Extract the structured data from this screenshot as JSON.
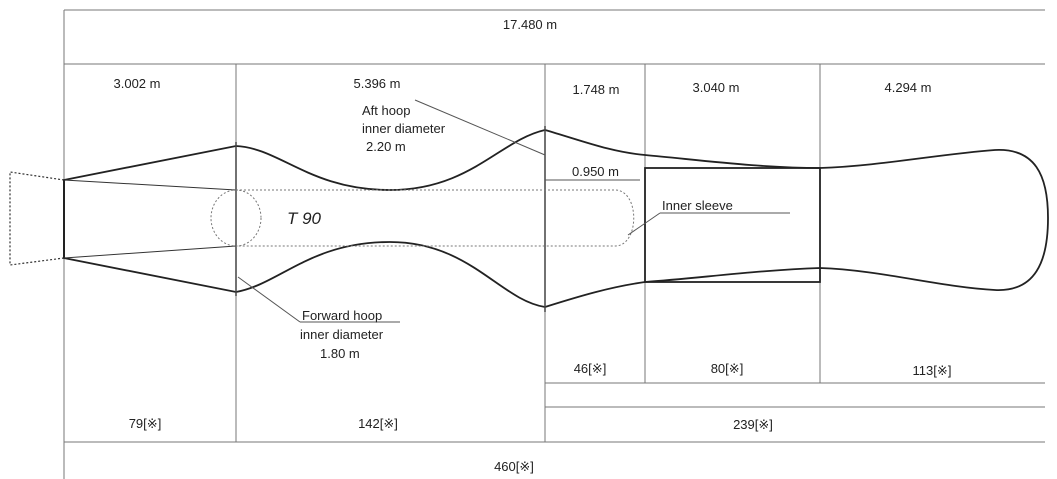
{
  "dimensions": {
    "total_length": "17.480 m",
    "seg_1": "3.002 m",
    "seg_2": "5.396 m",
    "seg_3": "1.748 m",
    "seg_4": "3.040 m",
    "seg_5": "4.294 m",
    "sleeve_gap": "0.950 m"
  },
  "labels": {
    "aft_hoop": [
      "Aft hoop",
      "inner diameter",
      "2.20 m"
    ],
    "forward_hoop": [
      "Forward hoop",
      "inner diameter",
      "1.80 m"
    ],
    "inner_sleeve": "Inner sleeve",
    "tank": "T 90"
  },
  "weights": {
    "unit_symbol": "※",
    "seg_1": "79",
    "seg_2": "142",
    "seg_3": "46",
    "seg_4": "80",
    "seg_5": "113",
    "aft_sum": "239",
    "total": "460"
  }
}
